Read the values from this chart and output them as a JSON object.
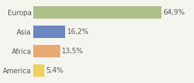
{
  "categories": [
    "America",
    "Africa",
    "Asia",
    "Europa"
  ],
  "values": [
    5.4,
    13.5,
    16.2,
    64.9
  ],
  "labels": [
    "5,4%",
    "13,5%",
    "16,2%",
    "64,9%"
  ],
  "bar_colors": [
    "#f0d060",
    "#e8aa72",
    "#6d87c1",
    "#aebf8a"
  ],
  "background_color": "#f5f5f0",
  "xlim": [
    0,
    80
  ],
  "label_fontsize": 7.2,
  "tick_fontsize": 7.2
}
